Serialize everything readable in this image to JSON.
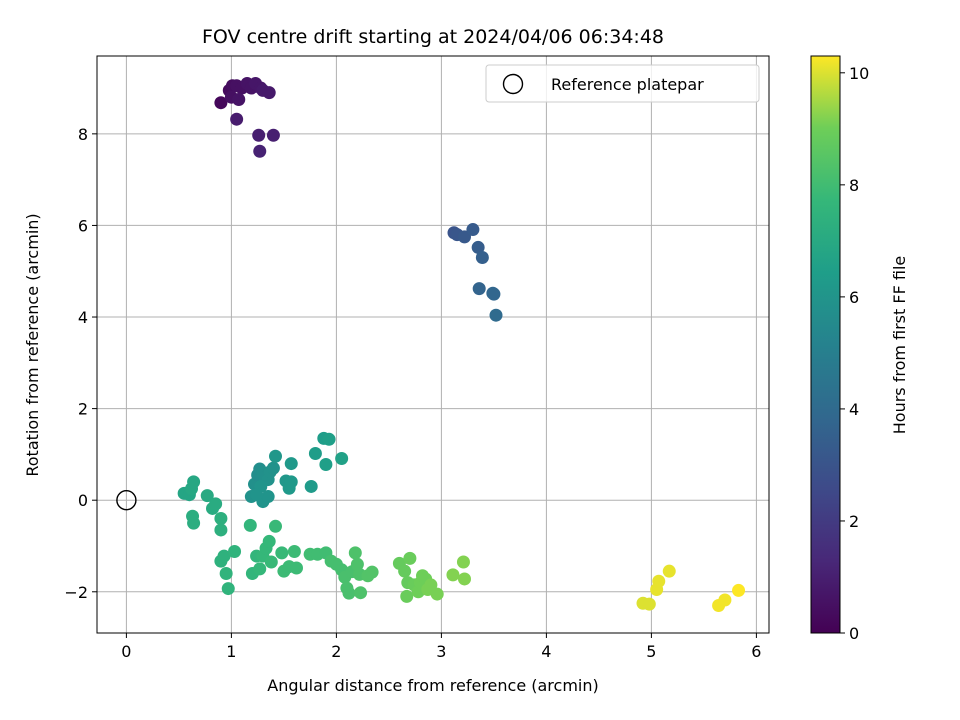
{
  "chart_data": {
    "type": "scatter",
    "title": "FOV centre drift starting at 2024/04/06 06:34:48",
    "xlabel": "Angular distance from reference (arcmin)",
    "ylabel": "Rotation from reference (arcmin)",
    "xlim": [
      -0.28,
      6.12
    ],
    "ylim": [
      -2.9,
      9.7
    ],
    "xticks": [
      0,
      1,
      2,
      3,
      4,
      5,
      6
    ],
    "yticks": [
      -2,
      0,
      2,
      4,
      6,
      8
    ],
    "xtick_labels": [
      "0",
      "1",
      "2",
      "3",
      "4",
      "5",
      "6"
    ],
    "ytick_labels": [
      "−2",
      "0",
      "2",
      "4",
      "6",
      "8"
    ],
    "grid": true,
    "legend": {
      "placement": "top-right",
      "entries": [
        "Reference platepar"
      ]
    },
    "reference_point": {
      "x": 0,
      "y": 0
    },
    "colorbar": {
      "label": "Hours from first FF file",
      "min": 0,
      "max": 10.3,
      "ticks": [
        0,
        2,
        4,
        6,
        8,
        10
      ],
      "tick_labels": [
        "0",
        "2",
        "4",
        "6",
        "8",
        "10"
      ],
      "colormap": "viridis"
    },
    "points": [
      {
        "x": 0.9,
        "y": 8.68,
        "c": 0.2
      },
      {
        "x": 0.98,
        "y": 8.95,
        "c": 0.3
      },
      {
        "x": 1.01,
        "y": 9.05,
        "c": 0.4
      },
      {
        "x": 1.05,
        "y": 9.05,
        "c": 0.5
      },
      {
        "x": 1.1,
        "y": 9.0,
        "c": 0.5
      },
      {
        "x": 1.15,
        "y": 9.1,
        "c": 0.6
      },
      {
        "x": 1.19,
        "y": 9.0,
        "c": 0.6
      },
      {
        "x": 1.23,
        "y": 9.1,
        "c": 0.7
      },
      {
        "x": 1.28,
        "y": 9.0,
        "c": 0.7
      },
      {
        "x": 1.3,
        "y": 8.95,
        "c": 0.8
      },
      {
        "x": 1.36,
        "y": 8.9,
        "c": 0.8
      },
      {
        "x": 1.0,
        "y": 8.8,
        "c": 0.5
      },
      {
        "x": 1.07,
        "y": 8.75,
        "c": 0.6
      },
      {
        "x": 1.05,
        "y": 8.32,
        "c": 0.9
      },
      {
        "x": 1.26,
        "y": 7.97,
        "c": 1.0
      },
      {
        "x": 1.4,
        "y": 7.97,
        "c": 1.0
      },
      {
        "x": 1.27,
        "y": 7.62,
        "c": 1.1
      },
      {
        "x": 3.12,
        "y": 5.84,
        "c": 3.0
      },
      {
        "x": 3.15,
        "y": 5.8,
        "c": 3.1
      },
      {
        "x": 3.22,
        "y": 5.75,
        "c": 3.2
      },
      {
        "x": 3.3,
        "y": 5.91,
        "c": 3.3
      },
      {
        "x": 3.35,
        "y": 5.52,
        "c": 3.4
      },
      {
        "x": 3.39,
        "y": 5.3,
        "c": 3.5
      },
      {
        "x": 3.36,
        "y": 4.62,
        "c": 3.7
      },
      {
        "x": 3.5,
        "y": 4.5,
        "c": 3.8
      },
      {
        "x": 3.49,
        "y": 4.52,
        "c": 3.8
      },
      {
        "x": 3.52,
        "y": 4.04,
        "c": 4.0
      },
      {
        "x": 0.55,
        "y": 0.15,
        "c": 6.8
      },
      {
        "x": 0.6,
        "y": 0.12,
        "c": 6.8
      },
      {
        "x": 0.62,
        "y": 0.25,
        "c": 6.9
      },
      {
        "x": 0.64,
        "y": 0.4,
        "c": 6.9
      },
      {
        "x": 0.77,
        "y": 0.1,
        "c": 7.0
      },
      {
        "x": 0.82,
        "y": -0.18,
        "c": 7.1
      },
      {
        "x": 0.85,
        "y": -0.08,
        "c": 7.1
      },
      {
        "x": 0.63,
        "y": -0.35,
        "c": 7.2
      },
      {
        "x": 0.64,
        "y": -0.5,
        "c": 7.2
      },
      {
        "x": 1.19,
        "y": 0.08,
        "c": 5.9
      },
      {
        "x": 1.22,
        "y": 0.35,
        "c": 5.8
      },
      {
        "x": 1.25,
        "y": 0.55,
        "c": 5.7
      },
      {
        "x": 1.27,
        "y": 0.68,
        "c": 5.7
      },
      {
        "x": 1.3,
        "y": 0.6,
        "c": 5.8
      },
      {
        "x": 1.32,
        "y": 0.5,
        "c": 5.8
      },
      {
        "x": 1.35,
        "y": 0.45,
        "c": 5.9
      },
      {
        "x": 1.37,
        "y": 0.62,
        "c": 5.9
      },
      {
        "x": 1.4,
        "y": 0.7,
        "c": 5.9
      },
      {
        "x": 1.28,
        "y": 0.3,
        "c": 6.0
      },
      {
        "x": 1.3,
        "y": -0.03,
        "c": 6.0
      },
      {
        "x": 1.35,
        "y": 0.08,
        "c": 6.0
      },
      {
        "x": 1.24,
        "y": 0.12,
        "c": 6.0
      },
      {
        "x": 1.42,
        "y": 0.96,
        "c": 6.1
      },
      {
        "x": 1.52,
        "y": 0.42,
        "c": 6.1
      },
      {
        "x": 1.55,
        "y": 0.26,
        "c": 6.2
      },
      {
        "x": 1.57,
        "y": 0.4,
        "c": 6.2
      },
      {
        "x": 1.57,
        "y": 0.8,
        "c": 6.2
      },
      {
        "x": 1.76,
        "y": 0.3,
        "c": 6.3
      },
      {
        "x": 1.8,
        "y": 1.02,
        "c": 6.4
      },
      {
        "x": 1.88,
        "y": 1.35,
        "c": 6.4
      },
      {
        "x": 1.93,
        "y": 1.33,
        "c": 6.5
      },
      {
        "x": 1.9,
        "y": 0.78,
        "c": 6.5
      },
      {
        "x": 2.05,
        "y": 0.91,
        "c": 6.6
      },
      {
        "x": 0.9,
        "y": -0.4,
        "c": 7.3
      },
      {
        "x": 0.9,
        "y": -0.65,
        "c": 7.3
      },
      {
        "x": 0.9,
        "y": -1.33,
        "c": 7.4
      },
      {
        "x": 0.93,
        "y": -1.22,
        "c": 7.4
      },
      {
        "x": 0.95,
        "y": -1.6,
        "c": 7.5
      },
      {
        "x": 0.97,
        "y": -1.93,
        "c": 7.5
      },
      {
        "x": 1.03,
        "y": -1.12,
        "c": 7.5
      },
      {
        "x": 1.18,
        "y": -0.55,
        "c": 7.6
      },
      {
        "x": 1.2,
        "y": -1.6,
        "c": 7.6
      },
      {
        "x": 1.24,
        "y": -1.22,
        "c": 7.6
      },
      {
        "x": 1.27,
        "y": -1.5,
        "c": 7.7
      },
      {
        "x": 1.3,
        "y": -1.22,
        "c": 7.7
      },
      {
        "x": 1.33,
        "y": -1.05,
        "c": 7.7
      },
      {
        "x": 1.36,
        "y": -0.9,
        "c": 7.7
      },
      {
        "x": 1.38,
        "y": -1.35,
        "c": 7.8
      },
      {
        "x": 1.42,
        "y": -0.57,
        "c": 7.8
      },
      {
        "x": 1.48,
        "y": -1.15,
        "c": 7.8
      },
      {
        "x": 1.5,
        "y": -1.55,
        "c": 7.9
      },
      {
        "x": 1.55,
        "y": -1.45,
        "c": 7.9
      },
      {
        "x": 1.6,
        "y": -1.12,
        "c": 7.9
      },
      {
        "x": 1.62,
        "y": -1.48,
        "c": 7.9
      },
      {
        "x": 1.75,
        "y": -1.18,
        "c": 8.0
      },
      {
        "x": 1.82,
        "y": -1.18,
        "c": 8.0
      },
      {
        "x": 1.9,
        "y": -1.15,
        "c": 8.0
      },
      {
        "x": 1.95,
        "y": -1.33,
        "c": 8.1
      },
      {
        "x": 2.0,
        "y": -1.4,
        "c": 8.1
      },
      {
        "x": 2.05,
        "y": -1.52,
        "c": 8.1
      },
      {
        "x": 2.08,
        "y": -1.68,
        "c": 8.2
      },
      {
        "x": 2.1,
        "y": -1.92,
        "c": 8.2
      },
      {
        "x": 2.12,
        "y": -2.03,
        "c": 8.2
      },
      {
        "x": 2.15,
        "y": -1.56,
        "c": 8.2
      },
      {
        "x": 2.18,
        "y": -1.15,
        "c": 8.3
      },
      {
        "x": 2.2,
        "y": -1.4,
        "c": 8.3
      },
      {
        "x": 2.22,
        "y": -1.62,
        "c": 8.3
      },
      {
        "x": 2.23,
        "y": -2.02,
        "c": 8.3
      },
      {
        "x": 2.3,
        "y": -1.65,
        "c": 8.4
      },
      {
        "x": 2.34,
        "y": -1.57,
        "c": 8.4
      },
      {
        "x": 2.6,
        "y": -1.38,
        "c": 8.8
      },
      {
        "x": 2.65,
        "y": -1.55,
        "c": 8.8
      },
      {
        "x": 2.68,
        "y": -1.8,
        "c": 8.8
      },
      {
        "x": 2.67,
        "y": -2.1,
        "c": 8.9
      },
      {
        "x": 2.7,
        "y": -1.27,
        "c": 8.9
      },
      {
        "x": 2.74,
        "y": -1.85,
        "c": 8.9
      },
      {
        "x": 2.78,
        "y": -2.0,
        "c": 9.0
      },
      {
        "x": 2.8,
        "y": -1.8,
        "c": 9.0
      },
      {
        "x": 2.82,
        "y": -1.65,
        "c": 9.0
      },
      {
        "x": 2.85,
        "y": -1.72,
        "c": 9.0
      },
      {
        "x": 2.87,
        "y": -1.95,
        "c": 9.1
      },
      {
        "x": 2.9,
        "y": -1.85,
        "c": 9.1
      },
      {
        "x": 2.96,
        "y": -2.05,
        "c": 9.1
      },
      {
        "x": 3.11,
        "y": -1.63,
        "c": 9.2
      },
      {
        "x": 3.21,
        "y": -1.35,
        "c": 9.2
      },
      {
        "x": 3.22,
        "y": -1.72,
        "c": 9.2
      },
      {
        "x": 4.92,
        "y": -2.25,
        "c": 10.0
      },
      {
        "x": 4.98,
        "y": -2.27,
        "c": 10.0
      },
      {
        "x": 5.05,
        "y": -1.95,
        "c": 10.1
      },
      {
        "x": 5.07,
        "y": -1.77,
        "c": 10.1
      },
      {
        "x": 5.17,
        "y": -1.55,
        "c": 10.1
      },
      {
        "x": 5.64,
        "y": -2.3,
        "c": 10.2
      },
      {
        "x": 5.7,
        "y": -2.18,
        "c": 10.2
      },
      {
        "x": 5.83,
        "y": -1.97,
        "c": 10.3
      }
    ]
  }
}
